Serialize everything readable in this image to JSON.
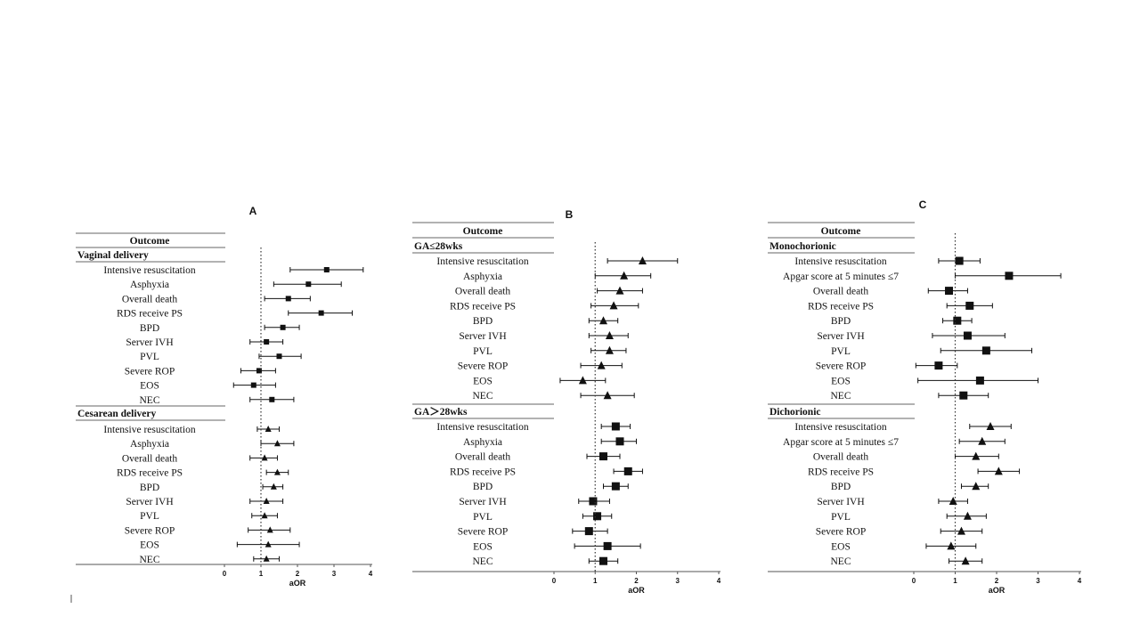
{
  "figure_title": "",
  "chart_data": [
    {
      "type": "forest",
      "panel": "A",
      "header": "Outcome",
      "xlabel": "aOR",
      "xlim": [
        0,
        4
      ],
      "xticks": [
        "0",
        "1",
        "2",
        "3",
        "4"
      ],
      "reference_line": 1,
      "groups": [
        {
          "name": "Vaginal delivery",
          "marker": "square",
          "rows": [
            {
              "label": "Intensive resuscitation",
              "or": 2.8,
              "lo": 1.8,
              "hi": 3.8
            },
            {
              "label": "Asphyxia",
              "or": 2.3,
              "lo": 1.35,
              "hi": 3.2
            },
            {
              "label": "Overall death",
              "or": 1.75,
              "lo": 1.1,
              "hi": 2.35
            },
            {
              "label": "RDS receive PS",
              "or": 2.65,
              "lo": 1.75,
              "hi": 3.5
            },
            {
              "label": "BPD",
              "or": 1.6,
              "lo": 1.1,
              "hi": 2.05
            },
            {
              "label": "Server IVH",
              "or": 1.15,
              "lo": 0.7,
              "hi": 1.6
            },
            {
              "label": "PVL",
              "or": 1.5,
              "lo": 0.95,
              "hi": 2.1
            },
            {
              "label": "Severe ROP",
              "or": 0.95,
              "lo": 0.45,
              "hi": 1.4
            },
            {
              "label": "EOS",
              "or": 0.8,
              "lo": 0.25,
              "hi": 1.4
            },
            {
              "label": "NEC",
              "or": 1.3,
              "lo": 0.7,
              "hi": 1.9
            }
          ]
        },
        {
          "name": "Cesarean delivery",
          "marker": "triangle",
          "rows": [
            {
              "label": "Intensive resuscitation",
              "or": 1.2,
              "lo": 0.9,
              "hi": 1.5
            },
            {
              "label": "Asphyxia",
              "or": 1.45,
              "lo": 1.0,
              "hi": 1.9
            },
            {
              "label": "Overall death",
              "or": 1.1,
              "lo": 0.7,
              "hi": 1.45
            },
            {
              "label": "RDS receive PS",
              "or": 1.45,
              "lo": 1.15,
              "hi": 1.75
            },
            {
              "label": "BPD",
              "or": 1.35,
              "lo": 1.05,
              "hi": 1.6
            },
            {
              "label": "Server IVH",
              "or": 1.15,
              "lo": 0.7,
              "hi": 1.6
            },
            {
              "label": "PVL",
              "or": 1.1,
              "lo": 0.75,
              "hi": 1.45
            },
            {
              "label": "Severe ROP",
              "or": 1.25,
              "lo": 0.65,
              "hi": 1.8
            },
            {
              "label": "EOS",
              "or": 1.2,
              "lo": 0.35,
              "hi": 2.05
            },
            {
              "label": "NEC",
              "or": 1.15,
              "lo": 0.8,
              "hi": 1.5
            }
          ]
        }
      ]
    },
    {
      "type": "forest",
      "panel": "B",
      "header": "Outcome",
      "xlabel": "aOR",
      "xlim": [
        0,
        4
      ],
      "xticks": [
        "0",
        "1",
        "2",
        "3",
        "4"
      ],
      "reference_line": 1,
      "groups": [
        {
          "name": "GA≤28wks",
          "marker": "triangle",
          "rows": [
            {
              "label": "Intensive resuscitation",
              "or": 2.15,
              "lo": 1.3,
              "hi": 3.0
            },
            {
              "label": "Asphyxia",
              "or": 1.7,
              "lo": 1.0,
              "hi": 2.35
            },
            {
              "label": "Overall death",
              "or": 1.6,
              "lo": 1.05,
              "hi": 2.15
            },
            {
              "label": "RDS receive PS",
              "or": 1.45,
              "lo": 0.9,
              "hi": 2.05
            },
            {
              "label": "BPD",
              "or": 1.2,
              "lo": 0.85,
              "hi": 1.55
            },
            {
              "label": "Server IVH",
              "or": 1.35,
              "lo": 0.85,
              "hi": 1.8
            },
            {
              "label": "PVL",
              "or": 1.35,
              "lo": 0.9,
              "hi": 1.75
            },
            {
              "label": "Severe ROP",
              "or": 1.15,
              "lo": 0.65,
              "hi": 1.65
            },
            {
              "label": "EOS",
              "or": 0.7,
              "lo": 0.15,
              "hi": 1.25
            },
            {
              "label": "NEC",
              "or": 1.3,
              "lo": 0.65,
              "hi": 1.95
            }
          ]
        },
        {
          "name": "GA＞28wks",
          "marker": "square",
          "rows": [
            {
              "label": "Intensive resuscitation",
              "or": 1.5,
              "lo": 1.15,
              "hi": 1.85
            },
            {
              "label": "Asphyxia",
              "or": 1.6,
              "lo": 1.15,
              "hi": 2.0
            },
            {
              "label": "Overall death",
              "or": 1.2,
              "lo": 0.8,
              "hi": 1.6
            },
            {
              "label": "RDS receive PS",
              "or": 1.8,
              "lo": 1.45,
              "hi": 2.15
            },
            {
              "label": "BPD",
              "or": 1.5,
              "lo": 1.2,
              "hi": 1.8
            },
            {
              "label": "Server IVH",
              "or": 0.95,
              "lo": 0.6,
              "hi": 1.35
            },
            {
              "label": "PVL",
              "or": 1.05,
              "lo": 0.7,
              "hi": 1.4
            },
            {
              "label": "Severe ROP",
              "or": 0.85,
              "lo": 0.45,
              "hi": 1.3
            },
            {
              "label": "EOS",
              "or": 1.3,
              "lo": 0.5,
              "hi": 2.1
            },
            {
              "label": "NEC",
              "or": 1.2,
              "lo": 0.85,
              "hi": 1.55
            }
          ]
        }
      ]
    },
    {
      "type": "forest",
      "panel": "C",
      "header": "Outcome",
      "xlabel": "aOR",
      "xlim": [
        0,
        4
      ],
      "xticks": [
        "0",
        "1",
        "2",
        "3",
        "4"
      ],
      "reference_line": 1,
      "groups": [
        {
          "name": "Monochorionic",
          "marker": "square",
          "rows": [
            {
              "label": "Intensive resuscitation",
              "or": 1.1,
              "lo": 0.6,
              "hi": 1.6
            },
            {
              "label": "Apgar score at 5 minutes ≤7",
              "or": 2.3,
              "lo": 1.0,
              "hi": 3.55
            },
            {
              "label": "Overall death",
              "or": 0.85,
              "lo": 0.35,
              "hi": 1.3
            },
            {
              "label": "RDS receive PS",
              "or": 1.35,
              "lo": 0.8,
              "hi": 1.9
            },
            {
              "label": "BPD",
              "or": 1.05,
              "lo": 0.7,
              "hi": 1.4
            },
            {
              "label": "Server IVH",
              "or": 1.3,
              "lo": 0.45,
              "hi": 2.2
            },
            {
              "label": "PVL",
              "or": 1.75,
              "lo": 0.65,
              "hi": 2.85
            },
            {
              "label": "Severe ROP",
              "or": 0.6,
              "lo": 0.05,
              "hi": 1.05
            },
            {
              "label": "EOS",
              "or": 1.6,
              "lo": 0.1,
              "hi": 3.0
            },
            {
              "label": "NEC",
              "or": 1.2,
              "lo": 0.6,
              "hi": 1.8
            }
          ]
        },
        {
          "name": "Dichorionic",
          "marker": "triangle",
          "rows": [
            {
              "label": "Intensive resuscitation",
              "or": 1.85,
              "lo": 1.35,
              "hi": 2.35
            },
            {
              "label": "Apgar score at 5 minutes ≤7",
              "or": 1.65,
              "lo": 1.1,
              "hi": 2.2
            },
            {
              "label": "Overall death",
              "or": 1.5,
              "lo": 1.0,
              "hi": 2.05
            },
            {
              "label": "RDS receive PS",
              "or": 2.05,
              "lo": 1.55,
              "hi": 2.55
            },
            {
              "label": "BPD",
              "or": 1.5,
              "lo": 1.15,
              "hi": 1.8
            },
            {
              "label": "Server IVH",
              "or": 0.95,
              "lo": 0.6,
              "hi": 1.3
            },
            {
              "label": "PVL",
              "or": 1.3,
              "lo": 0.8,
              "hi": 1.75
            },
            {
              "label": "Severe ROP",
              "or": 1.15,
              "lo": 0.65,
              "hi": 1.65
            },
            {
              "label": "EOS",
              "or": 0.9,
              "lo": 0.3,
              "hi": 1.5
            },
            {
              "label": "NEC",
              "or": 1.25,
              "lo": 0.85,
              "hi": 1.65
            }
          ]
        }
      ]
    }
  ]
}
